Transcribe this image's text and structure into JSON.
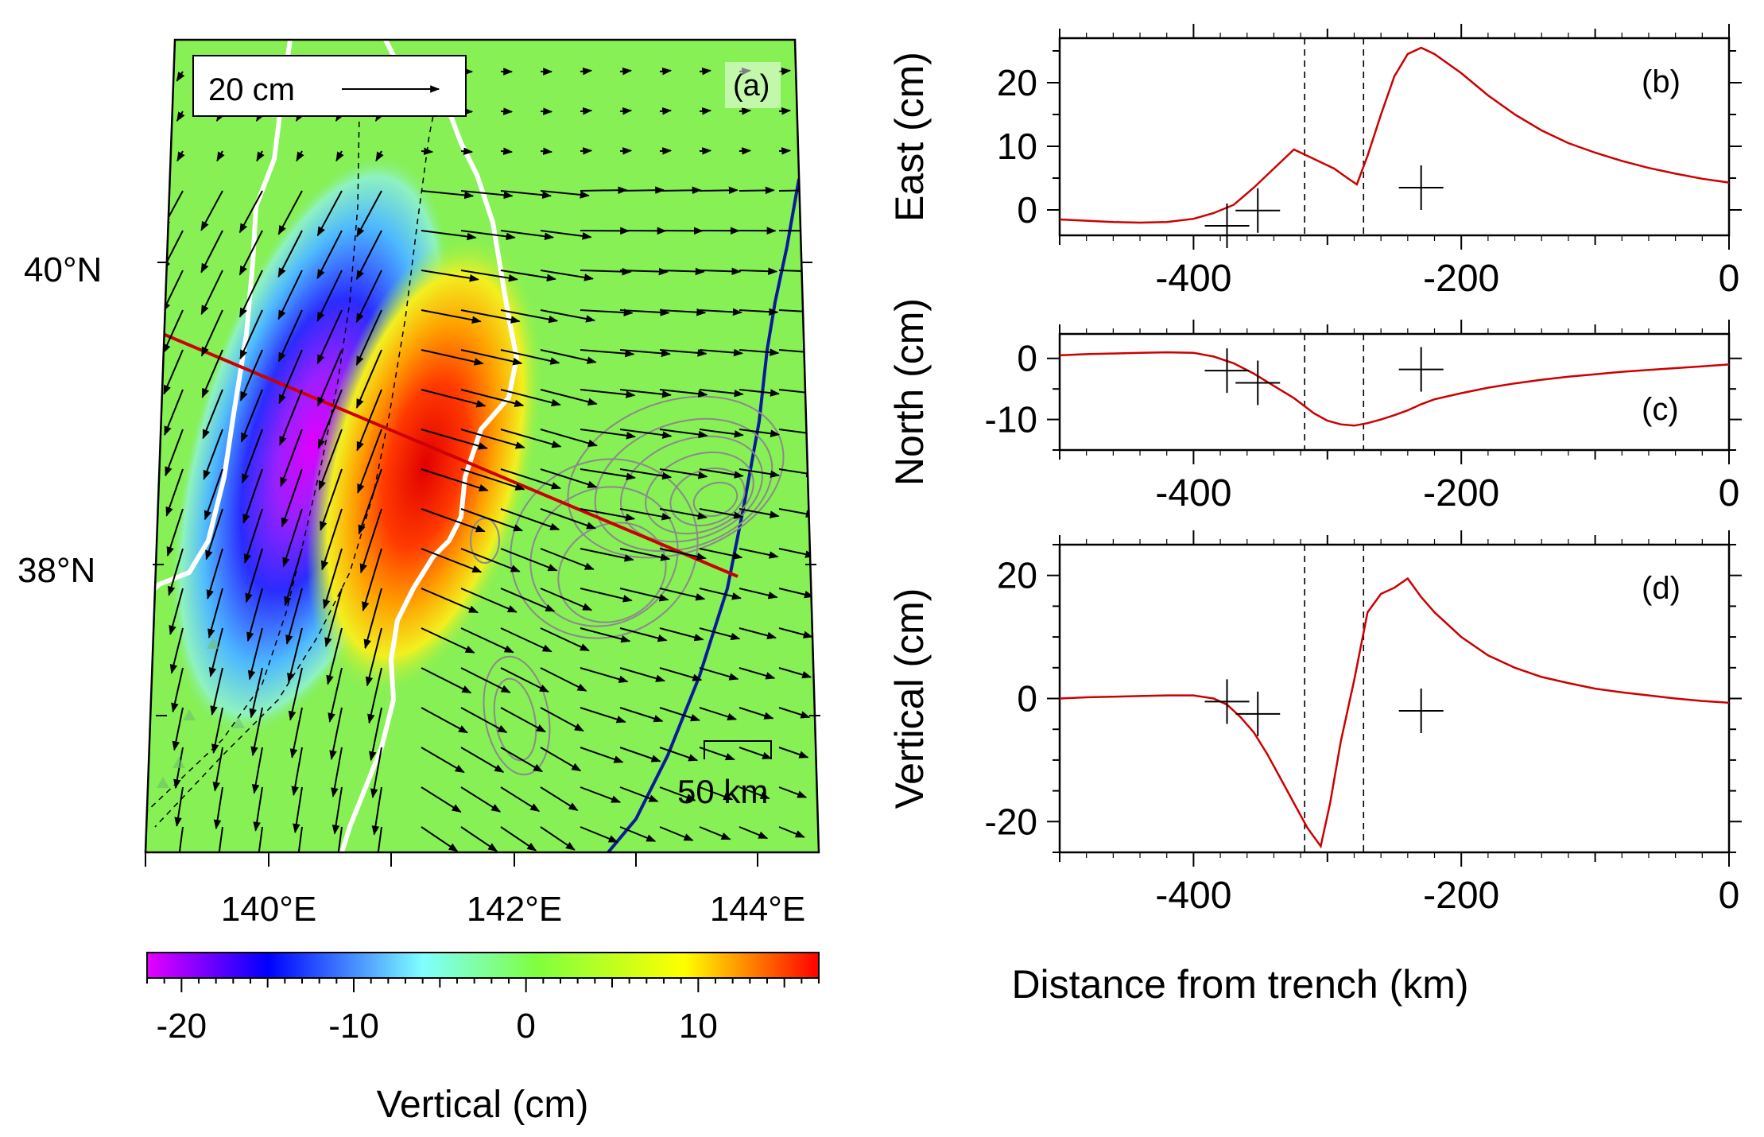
{
  "map": {
    "panel_label": "(a)",
    "scale_arrow_label": "20 cm",
    "scale_bar_label": "50 km",
    "lat_labels": [
      "40°N",
      "38°N"
    ],
    "lon_labels": [
      "140°E",
      "142°E",
      "144°E"
    ],
    "colorbar": {
      "title": "Vertical (cm)",
      "range": [
        -22,
        17
      ],
      "tick_values": [
        -20,
        -10,
        0,
        10
      ],
      "tick_labels": [
        "-20",
        "-10",
        "0",
        "10"
      ],
      "colors": [
        "#e600ff",
        "#0000ff",
        "#7fffff",
        "#7fff3f",
        "#ffff00",
        "#ff0000"
      ]
    },
    "profile_line_color": "#cc0000",
    "trench_color": "#0a1a9c",
    "coast_color": "#ffffff",
    "contour_color": "#8a8a8a"
  },
  "profiles": {
    "xlabel": "Distance from trench (km)",
    "xlim": [
      -500,
      0
    ],
    "xticks": [
      -400,
      -200,
      0
    ],
    "xtick_labels": [
      "-400",
      "-200",
      "0"
    ],
    "dashed_lines_x": [
      -317,
      -273
    ],
    "line_color": "#cc0000"
  },
  "chart_data": [
    {
      "type": "line",
      "panel": "(b)",
      "ylabel": "East (cm)",
      "ylim": [
        -4,
        27
      ],
      "yticks": [
        0,
        10,
        20
      ],
      "ytick_labels": [
        "0",
        "10",
        "20"
      ],
      "x": [
        -500,
        -480,
        -460,
        -440,
        -420,
        -400,
        -385,
        -370,
        -355,
        -340,
        -325,
        -310,
        -295,
        -285,
        -278,
        -270,
        -260,
        -250,
        -240,
        -230,
        -220,
        -200,
        -180,
        -160,
        -140,
        -120,
        -100,
        -80,
        -60,
        -40,
        -20,
        0
      ],
      "y": [
        -1.5,
        -1.7,
        -1.9,
        -2.0,
        -1.9,
        -1.4,
        -0.5,
        0.8,
        3.5,
        6.5,
        9.5,
        8.0,
        6.5,
        5.0,
        4.0,
        8.5,
        15.0,
        21.0,
        24.5,
        25.5,
        24.5,
        21.5,
        18.0,
        15.0,
        12.5,
        10.5,
        9.0,
        7.7,
        6.6,
        5.7,
        4.9,
        4.3
      ],
      "obs": [
        {
          "x": -375,
          "y": -2.5
        },
        {
          "x": -352,
          "y": -0.1
        },
        {
          "x": -230,
          "y": 3.5
        }
      ]
    },
    {
      "type": "line",
      "panel": "(c)",
      "ylabel": "North (cm)",
      "ylim": [
        -15,
        4
      ],
      "yticks": [
        0,
        -10
      ],
      "ytick_labels": [
        "0",
        "-10"
      ],
      "x": [
        -500,
        -480,
        -460,
        -440,
        -420,
        -400,
        -385,
        -370,
        -355,
        -340,
        -325,
        -310,
        -300,
        -290,
        -280,
        -270,
        -260,
        -250,
        -240,
        -230,
        -220,
        -200,
        -180,
        -160,
        -140,
        -120,
        -100,
        -80,
        -60,
        -40,
        -20,
        0
      ],
      "y": [
        0.5,
        0.7,
        0.8,
        0.9,
        1.0,
        0.9,
        0.3,
        -0.8,
        -2.5,
        -4.5,
        -6.5,
        -9.0,
        -10.2,
        -10.8,
        -11.0,
        -10.6,
        -10.0,
        -9.3,
        -8.5,
        -7.5,
        -6.7,
        -5.7,
        -4.8,
        -4.1,
        -3.5,
        -3.0,
        -2.6,
        -2.2,
        -1.9,
        -1.6,
        -1.3,
        -1.0
      ],
      "obs": [
        {
          "x": -375,
          "y": -2.0
        },
        {
          "x": -352,
          "y": -4.0
        },
        {
          "x": -230,
          "y": -1.8
        }
      ]
    },
    {
      "type": "line",
      "panel": "(d)",
      "xlabel": "Distance from trench (km)",
      "ylabel": "Vertical (cm)",
      "ylim": [
        -25,
        25
      ],
      "yticks": [
        20,
        0,
        -20
      ],
      "ytick_labels": [
        "20",
        "0",
        "-20"
      ],
      "x": [
        -500,
        -480,
        -460,
        -440,
        -420,
        -400,
        -385,
        -375,
        -365,
        -355,
        -345,
        -335,
        -325,
        -315,
        -305,
        -298,
        -290,
        -280,
        -270,
        -260,
        -250,
        -240,
        -230,
        -220,
        -200,
        -180,
        -160,
        -140,
        -120,
        -100,
        -80,
        -60,
        -40,
        -20,
        0
      ],
      "y": [
        0.0,
        0.2,
        0.3,
        0.4,
        0.5,
        0.5,
        0.0,
        -1.0,
        -3.0,
        -5.5,
        -9.0,
        -13.0,
        -17.0,
        -21.0,
        -24.0,
        -17.0,
        -7.0,
        3.0,
        14.0,
        17.0,
        18.0,
        19.5,
        16.5,
        14.0,
        10.0,
        7.0,
        5.0,
        3.5,
        2.5,
        1.6,
        1.0,
        0.5,
        0.0,
        -0.4,
        -0.7
      ],
      "obs": [
        {
          "x": -375,
          "y": -0.5
        },
        {
          "x": -352,
          "y": -2.5
        },
        {
          "x": -230,
          "y": -2.0
        }
      ]
    }
  ]
}
